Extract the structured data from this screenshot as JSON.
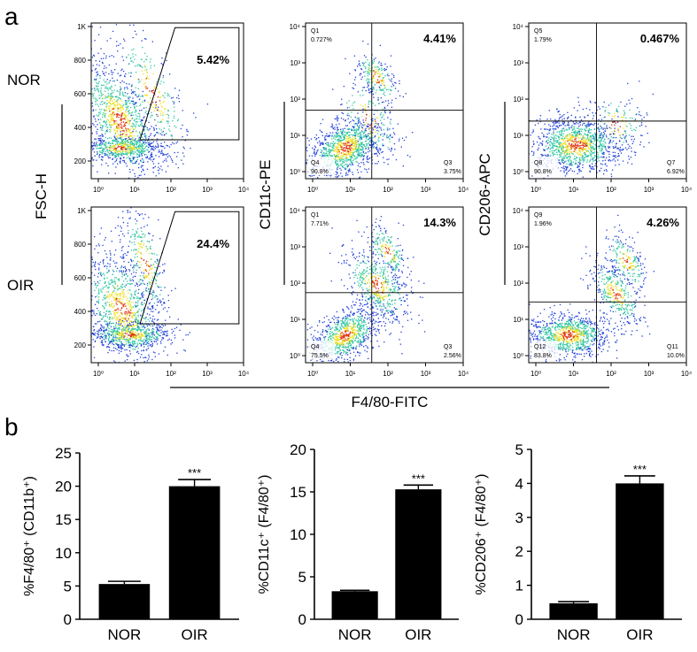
{
  "panel_labels": {
    "a": "a",
    "b": "b"
  },
  "row_labels": {
    "top": "NOR",
    "bottom": "OIR"
  },
  "axis_titles": {
    "fsc": "FSC-H",
    "cd11c": "CD11c-PE",
    "cd206": "CD206-APC",
    "f480": "F4/80-FITC"
  },
  "colors": {
    "bar": "#000000",
    "axis": "#000000",
    "gate": "#000000",
    "density_low": "#1f3fd8",
    "density_mid": "#2ec7a0",
    "density_high": "#f0e020",
    "density_peak": "#e03010"
  },
  "flow_ticks": {
    "x": [
      "10⁰",
      "10¹",
      "10²",
      "10³",
      "10⁴"
    ],
    "y_log": [
      "10⁰",
      "10¹",
      "10²",
      "10³",
      "10⁴"
    ],
    "y_lin": [
      "200",
      "400",
      "600",
      "800",
      "1K"
    ]
  },
  "flow_panels": [
    {
      "row": "NOR",
      "column": "FSC",
      "gate_pct": "5.42%",
      "quadrants": []
    },
    {
      "row": "NOR",
      "column": "CD11c",
      "gate_pct": "4.41%",
      "quadrants": [
        {
          "name": "Q1",
          "pct": "0.727%"
        },
        {
          "name": "Q4",
          "pct": "90.8%"
        },
        {
          "name": "Q3",
          "pct": "3.75%"
        }
      ]
    },
    {
      "row": "NOR",
      "column": "CD206",
      "gate_pct": "0.467%",
      "quadrants": [
        {
          "name": "Q5",
          "pct": "1.79%"
        },
        {
          "name": "Q8",
          "pct": "90.8%"
        },
        {
          "name": "Q7",
          "pct": "6.92%"
        }
      ]
    },
    {
      "row": "OIR",
      "column": "FSC",
      "gate_pct": "24.4%",
      "quadrants": []
    },
    {
      "row": "OIR",
      "column": "CD11c",
      "gate_pct": "14.3%",
      "quadrants": [
        {
          "name": "Q1",
          "pct": "7.71%"
        },
        {
          "name": "Q4",
          "pct": "75.5%"
        },
        {
          "name": "Q3",
          "pct": "2.56%"
        }
      ]
    },
    {
      "row": "OIR",
      "column": "CD206",
      "gate_pct": "4.26%",
      "quadrants": [
        {
          "name": "Q9",
          "pct": "1.96%"
        },
        {
          "name": "Q12",
          "pct": "83.8%"
        },
        {
          "name": "Q11",
          "pct": "10.0%"
        }
      ]
    }
  ],
  "chart_data": [
    {
      "type": "bar",
      "categories": [
        "NOR",
        "OIR"
      ],
      "values": [
        5.3,
        20.0
      ],
      "errors": [
        0.4,
        1.0
      ],
      "significance": [
        "",
        "***"
      ],
      "ylabel": "%F4/80⁺ (CD11b⁺)",
      "ylim": [
        0,
        25
      ],
      "yticks": [
        0,
        5,
        10,
        15,
        20,
        25
      ]
    },
    {
      "type": "bar",
      "categories": [
        "NOR",
        "OIR"
      ],
      "values": [
        3.3,
        15.3
      ],
      "errors": [
        0.1,
        0.5
      ],
      "significance": [
        "",
        "***"
      ],
      "ylabel": "%CD11c⁺ (F4/80⁺)",
      "ylim": [
        0,
        20
      ],
      "yticks": [
        0,
        5,
        10,
        15,
        20
      ]
    },
    {
      "type": "bar",
      "categories": [
        "NOR",
        "OIR"
      ],
      "values": [
        0.47,
        4.0
      ],
      "errors": [
        0.05,
        0.22
      ],
      "significance": [
        "",
        "***"
      ],
      "ylabel": "%CD206⁺ (F4/80⁺)",
      "ylim": [
        0,
        5
      ],
      "yticks": [
        0,
        1,
        2,
        3,
        4,
        5
      ]
    }
  ]
}
